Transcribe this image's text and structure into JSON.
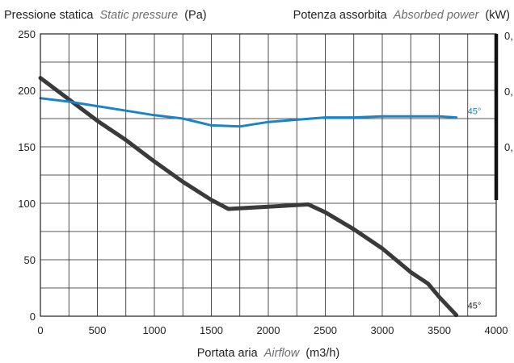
{
  "chart_data": {
    "type": "line",
    "title_left": {
      "main": "Pressione statica",
      "italic": "Static pressure",
      "unit": "(Pa)"
    },
    "title_right": {
      "main": "Potenza assorbita",
      "italic": "Absorbed power",
      "unit": "(kW)"
    },
    "xlabel": {
      "main": "Portata aria",
      "italic": "Airflow",
      "unit": "(m3/h)"
    },
    "xlim": [
      0,
      4000
    ],
    "ylim": [
      0,
      250
    ],
    "x_ticks": [
      0,
      500,
      1000,
      1500,
      2000,
      2500,
      3000,
      3500,
      4000
    ],
    "y_ticks": [
      0,
      50,
      100,
      150,
      200,
      250
    ],
    "right_tick_labels": [
      "0,",
      "0,",
      "0,"
    ],
    "grid": true,
    "series": [
      {
        "name": "45°",
        "quantity": "Static pressure",
        "color": "#3a3a3a",
        "x": [
          0,
          250,
          500,
          750,
          1000,
          1250,
          1500,
          1650,
          2000,
          2350,
          2500,
          2750,
          3000,
          3250,
          3400,
          3500,
          3650
        ],
        "y": [
          211,
          192,
          173,
          156,
          137,
          119,
          103,
          95,
          97,
          99,
          92,
          77,
          60,
          39,
          29,
          17,
          1
        ]
      },
      {
        "name": "45°",
        "quantity": "Absorbed power",
        "color": "#1a84c7",
        "x": [
          0,
          250,
          500,
          750,
          1000,
          1250,
          1500,
          1750,
          2000,
          2250,
          2500,
          2750,
          3000,
          3250,
          3500,
          3650
        ],
        "y": [
          193,
          190,
          186,
          182,
          178,
          175,
          169,
          168,
          172,
          174,
          176,
          176,
          177,
          177,
          177,
          176
        ]
      }
    ]
  }
}
